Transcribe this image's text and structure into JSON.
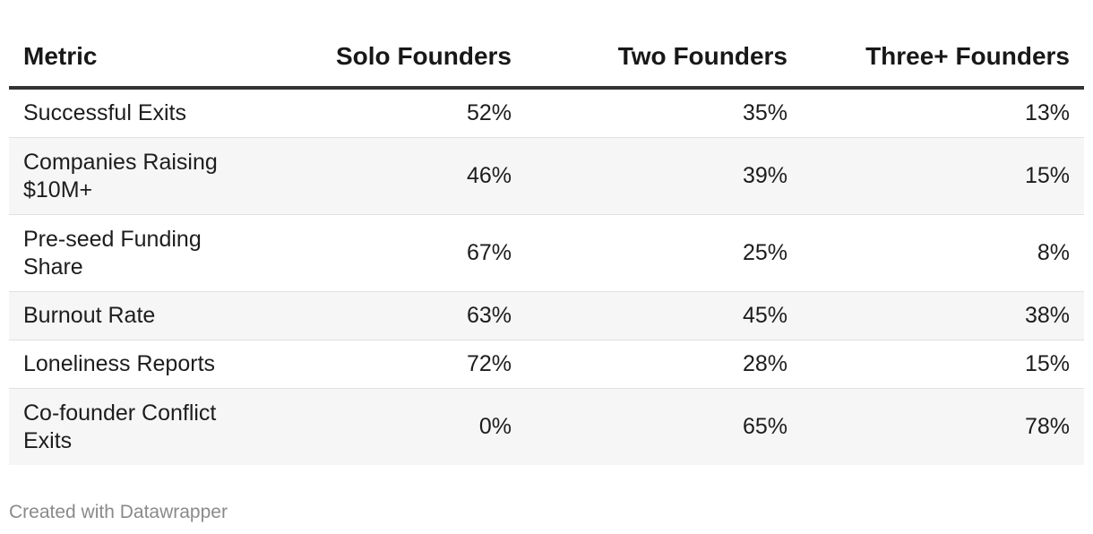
{
  "chart_data": {
    "type": "table",
    "columns": [
      "Metric",
      "Solo Founders",
      "Two Founders",
      "Three+ Founders"
    ],
    "rows": [
      {
        "metric": "Successful Exits",
        "solo": "52%",
        "two": "35%",
        "three": "13%"
      },
      {
        "metric": "Companies Raising $10M+",
        "solo": "46%",
        "two": "39%",
        "three": "15%"
      },
      {
        "metric": "Pre-seed Funding Share",
        "solo": "67%",
        "two": "25%",
        "three": "8%"
      },
      {
        "metric": "Burnout Rate",
        "solo": "63%",
        "two": "45%",
        "three": "38%"
      },
      {
        "metric": "Loneliness Reports",
        "solo": "72%",
        "two": "28%",
        "three": "15%"
      },
      {
        "metric": "Co-founder Conflict Exits",
        "solo": "0%",
        "two": "65%",
        "three": "78%"
      }
    ]
  },
  "footer": {
    "credit": "Created with Datawrapper"
  }
}
